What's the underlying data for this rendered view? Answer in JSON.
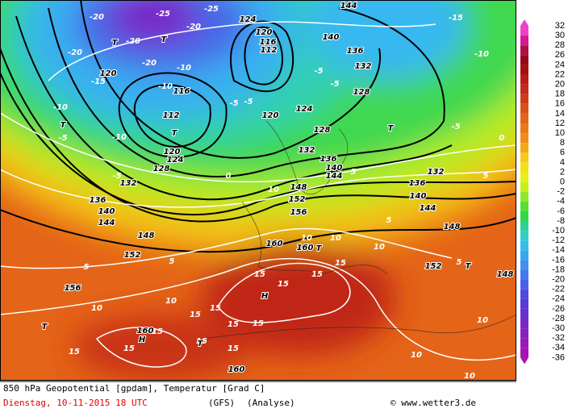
{
  "scale": {
    "labels": [
      32,
      30,
      28,
      26,
      24,
      22,
      20,
      18,
      16,
      14,
      12,
      10,
      8,
      6,
      4,
      2,
      0,
      -2,
      -4,
      -6,
      -8,
      -10,
      -12,
      -14,
      -16,
      -18,
      -20,
      -22,
      -24,
      -26,
      -28,
      -30,
      -32,
      -34,
      -36
    ],
    "colors": [
      "#f040c8",
      "#d81890",
      "#b01040",
      "#980818",
      "#a81010",
      "#c01818",
      "#c82818",
      "#d03a18",
      "#dc5018",
      "#e46418",
      "#ec7818",
      "#f08c18",
      "#f4a818",
      "#f8c818",
      "#f4e018",
      "#e8f018",
      "#c8f018",
      "#90e828",
      "#58e030",
      "#30d848",
      "#30d090",
      "#30d0c8",
      "#30c0e8",
      "#38a8f0",
      "#4090f0",
      "#4878f0",
      "#4860e8",
      "#5048e0",
      "#5838d8",
      "#6830d0",
      "#7828c8",
      "#8820c0",
      "#9818b8",
      "#a810b0"
    ]
  },
  "map_labels": [
    "-20",
    "-25",
    "-25",
    "-20",
    "-20",
    "-20",
    "-20",
    "-15",
    "-10",
    "-10",
    "-10",
    "-5",
    "-5",
    "-10",
    "-5",
    "-5",
    "0",
    "-5",
    "-5",
    "-10",
    "-15",
    "-5",
    "0",
    "5",
    "5",
    "5",
    "10",
    "10",
    "10",
    "10",
    "5",
    "5",
    "5",
    "10",
    "10",
    "10",
    "10",
    "10",
    "15",
    "15",
    "15",
    "15",
    "15",
    "15",
    "15",
    "15",
    "15",
    "15",
    "15",
    "15",
    "15",
    "124",
    "120",
    "116",
    "112",
    "120",
    "116",
    "112",
    "120",
    "124",
    "128",
    "132",
    "136",
    "140",
    "144",
    "148",
    "152",
    "156",
    "160",
    "160",
    "144",
    "140",
    "136",
    "132",
    "128",
    "124",
    "120",
    "128",
    "132",
    "136",
    "140",
    "144",
    "132",
    "136",
    "140",
    "144",
    "148",
    "152",
    "148",
    "148",
    "152",
    "156",
    "160",
    "160",
    "T",
    "T",
    "T",
    "T",
    "T",
    "T",
    "T",
    "T",
    "T",
    "H",
    "H"
  ],
  "footer": {
    "title": "850 hPa Geopotential [gpdam], Temperatur [Grad C]",
    "date": "Dienstag, 10-11-2015  18 UTC",
    "model": "(GFS)",
    "run": "(Analyse)",
    "credit": "© www.wetter3.de"
  }
}
